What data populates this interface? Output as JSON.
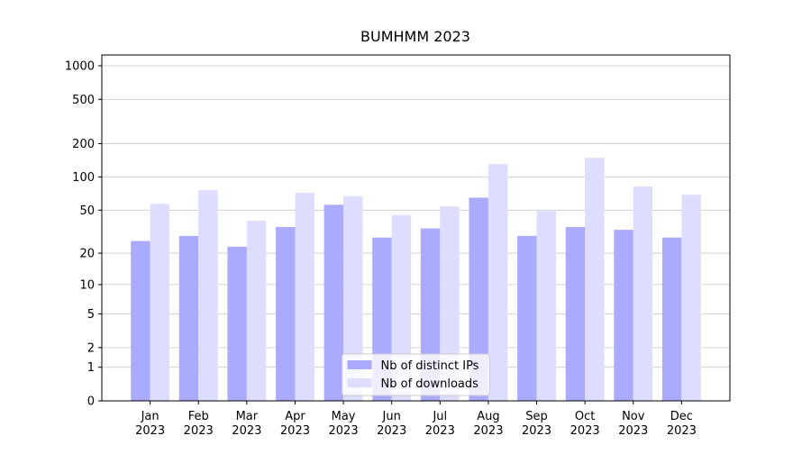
{
  "chart_data": {
    "type": "bar",
    "title": "BUMHMM 2023",
    "categories": [
      [
        "Jan",
        "2023"
      ],
      [
        "Feb",
        "2023"
      ],
      [
        "Mar",
        "2023"
      ],
      [
        "Apr",
        "2023"
      ],
      [
        "May",
        "2023"
      ],
      [
        "Jun",
        "2023"
      ],
      [
        "Jul",
        "2023"
      ],
      [
        "Aug",
        "2023"
      ],
      [
        "Sep",
        "2023"
      ],
      [
        "Oct",
        "2023"
      ],
      [
        "Nov",
        "2023"
      ],
      [
        "Dec",
        "2023"
      ]
    ],
    "series": [
      {
        "name": "Nb of distinct IPs",
        "color": "#aaaaff",
        "values": [
          26,
          29,
          23,
          35,
          56,
          28,
          34,
          65,
          29,
          35,
          33,
          28
        ]
      },
      {
        "name": "Nb of downloads",
        "color": "#ddddff",
        "values": [
          57,
          76,
          40,
          72,
          67,
          45,
          54,
          131,
          49,
          149,
          82,
          69
        ]
      }
    ],
    "yscale": "log1p",
    "ylim": [
      0,
      1250
    ],
    "yticks": [
      0,
      1,
      2,
      5,
      10,
      20,
      50,
      100,
      200,
      500,
      1000
    ],
    "grid": true,
    "legend": "lower center"
  }
}
